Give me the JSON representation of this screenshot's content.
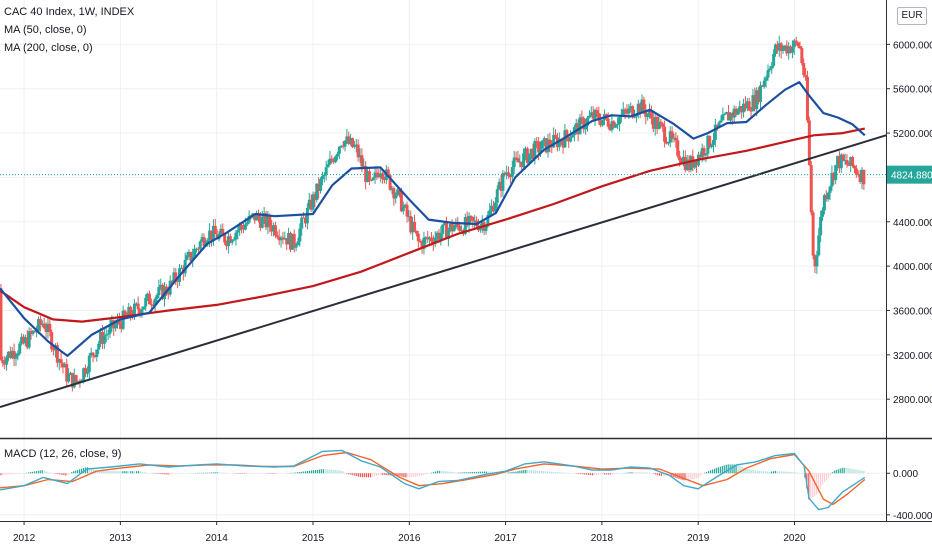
{
  "legend": {
    "symbol": "CAC 40 Index, 1W, INDEX",
    "ma50": "MA (50, close, 0)",
    "ma200": "MA (200, close, 0)",
    "macd": "MACD (12, 26, close, 9)"
  },
  "currency_button": "EUR",
  "last_price_label": "4824.880",
  "colors": {
    "up": "#26a69a",
    "down": "#ef5350",
    "ma50": "#1c4fa0",
    "ma200": "#c2171b",
    "trendline": "#2a2e39",
    "macd_line": "#3fa9c9",
    "signal_line": "#f0662d",
    "grid": "#eef0f3",
    "separator": "#2a2e39",
    "price_label_bg": "#26a69a"
  },
  "chart_data": [
    {
      "type": "candlestick",
      "title": "CAC 40 Index, 1W, INDEX",
      "currency": "EUR",
      "y_ticks": [
        "2800.000",
        "3200.000",
        "3600.000",
        "4000.000",
        "4400.000",
        "4800.000",
        "5200.000",
        "5600.000",
        "6000.000"
      ],
      "x_ticks": [
        "2012",
        "2013",
        "2014",
        "2015",
        "2016",
        "2017",
        "2018",
        "2019",
        "2020"
      ],
      "ylim": [
        2450,
        6400
      ],
      "xlim": [
        2011.75,
        2020.95
      ],
      "last_price": 4824.88,
      "series": [
        {
          "name": "MA (50, close, 0)",
          "x": [
            2011.75,
            2012.0,
            2012.25,
            2012.45,
            2012.7,
            2013.0,
            2013.3,
            2013.6,
            2013.9,
            2014.1,
            2014.4,
            2014.6,
            2015.0,
            2015.2,
            2015.4,
            2015.7,
            2016.0,
            2016.2,
            2016.45,
            2016.7,
            2016.9,
            2017.1,
            2017.4,
            2017.6,
            2017.9,
            2018.1,
            2018.3,
            2018.5,
            2018.75,
            2018.95,
            2019.1,
            2019.3,
            2019.5,
            2019.7,
            2019.9,
            2020.05,
            2020.15,
            2020.3,
            2020.45,
            2020.6,
            2020.73
          ],
          "y": [
            3800,
            3530,
            3320,
            3190,
            3380,
            3520,
            3580,
            3900,
            4200,
            4300,
            4470,
            4450,
            4470,
            4730,
            4880,
            4890,
            4600,
            4420,
            4390,
            4380,
            4480,
            4800,
            5050,
            5150,
            5310,
            5360,
            5350,
            5410,
            5280,
            5150,
            5200,
            5290,
            5300,
            5450,
            5590,
            5660,
            5540,
            5380,
            5340,
            5280,
            5180
          ]
        },
        {
          "name": "MA (200, close, 0)",
          "x": [
            2011.75,
            2012.0,
            2012.3,
            2012.6,
            2013.0,
            2013.5,
            2014.0,
            2014.5,
            2015.0,
            2015.5,
            2016.0,
            2016.5,
            2017.0,
            2017.5,
            2018.0,
            2018.5,
            2019.0,
            2019.5,
            2020.0,
            2020.2,
            2020.5,
            2020.73
          ],
          "y": [
            3780,
            3630,
            3520,
            3500,
            3540,
            3600,
            3650,
            3730,
            3820,
            3950,
            4120,
            4290,
            4420,
            4560,
            4720,
            4860,
            4960,
            5040,
            5140,
            5180,
            5200,
            5240
          ]
        },
        {
          "name": "Trendline",
          "x": [
            2011.75,
            2020.95
          ],
          "y": [
            2730,
            5180
          ]
        }
      ]
    },
    {
      "type": "line",
      "title": "MACD (12, 26, close, 9)",
      "y_ticks": [
        "0.000",
        "-400.000"
      ],
      "ylim": [
        -450,
        320
      ],
      "series": [
        {
          "name": "MACD",
          "x": [
            2011.75,
            2012.0,
            2012.2,
            2012.45,
            2012.65,
            2012.9,
            2013.2,
            2013.5,
            2013.8,
            2014.0,
            2014.3,
            2014.6,
            2014.8,
            2015.1,
            2015.3,
            2015.5,
            2015.7,
            2015.95,
            2016.1,
            2016.3,
            2016.5,
            2016.8,
            2017.0,
            2017.2,
            2017.4,
            2017.7,
            2017.9,
            2018.1,
            2018.3,
            2018.5,
            2018.7,
            2018.85,
            2019.0,
            2019.2,
            2019.4,
            2019.6,
            2019.8,
            2020.0,
            2020.1,
            2020.15,
            2020.25,
            2020.35,
            2020.5,
            2020.73
          ],
          "y": [
            -160,
            -120,
            -40,
            -100,
            40,
            60,
            90,
            60,
            80,
            90,
            70,
            60,
            70,
            210,
            220,
            120,
            60,
            -100,
            -150,
            -80,
            -70,
            -10,
            20,
            90,
            110,
            70,
            30,
            30,
            60,
            50,
            -20,
            -120,
            -150,
            -30,
            80,
            110,
            170,
            190,
            70,
            -240,
            -350,
            -330,
            -180,
            -40
          ]
        },
        {
          "name": "Signal",
          "x": [
            2011.75,
            2012.0,
            2012.25,
            2012.5,
            2012.75,
            2013.0,
            2013.3,
            2013.6,
            2013.9,
            2014.2,
            2014.5,
            2014.8,
            2015.1,
            2015.35,
            2015.6,
            2015.9,
            2016.1,
            2016.35,
            2016.6,
            2016.9,
            2017.1,
            2017.4,
            2017.7,
            2018.0,
            2018.3,
            2018.6,
            2018.85,
            2019.05,
            2019.3,
            2019.5,
            2019.75,
            2020.0,
            2020.15,
            2020.3,
            2020.4,
            2020.55,
            2020.73
          ],
          "y": [
            -140,
            -120,
            -60,
            -80,
            20,
            50,
            80,
            70,
            80,
            80,
            65,
            65,
            170,
            200,
            130,
            -40,
            -120,
            -100,
            -60,
            -10,
            40,
            90,
            70,
            40,
            50,
            40,
            -50,
            -120,
            -60,
            50,
            140,
            180,
            20,
            -250,
            -300,
            -200,
            -60
          ]
        }
      ]
    }
  ]
}
